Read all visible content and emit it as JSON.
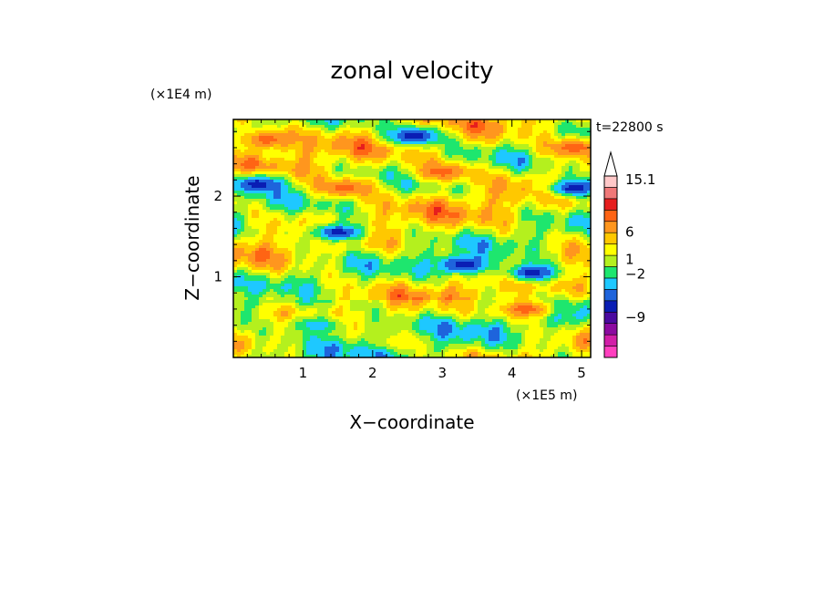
{
  "chart_data": {
    "type": "heatmap",
    "title": "zonal velocity",
    "xlabel": "X−coordinate",
    "ylabel": "Z−coordinate",
    "x_unit": "(×1E5 m)",
    "y_unit": "(×1E4 m)",
    "time_label": "t=22800 s",
    "xlim": [
      0,
      5.13
    ],
    "ylim": [
      0,
      2.95
    ],
    "x_ticks": [
      "1",
      "2",
      "3",
      "4",
      "5"
    ],
    "x_tick_values": [
      1,
      2,
      3,
      4,
      5
    ],
    "y_ticks": [
      "1",
      "2"
    ],
    "y_tick_values": [
      1,
      2
    ],
    "colorbar": {
      "labels": [
        "15.1",
        "6",
        "1",
        "−2",
        "−9"
      ],
      "label_values": [
        15.1,
        6,
        1,
        -2,
        -9
      ],
      "bands": [
        {
          "color": "#ff3fbf"
        },
        {
          "color": "#d21ea8"
        },
        {
          "color": "#8c0aa0"
        },
        {
          "color": "#4b0aa0"
        },
        {
          "color": "#0a1eb4"
        },
        {
          "color": "#1e64dc"
        },
        {
          "color": "#1ec8ff"
        },
        {
          "color": "#1ee66e"
        },
        {
          "color": "#b4f01e"
        },
        {
          "color": "#ffff00"
        },
        {
          "color": "#ffc800"
        },
        {
          "color": "#ff961e"
        },
        {
          "color": "#ff6414"
        },
        {
          "color": "#e61e1e"
        },
        {
          "color": "#f07878"
        },
        {
          "color": "#ffc8c8"
        }
      ]
    },
    "field_features": [
      {
        "x": 0.35,
        "z": 2.15,
        "level": 4
      },
      {
        "x": 2.6,
        "z": 2.75,
        "level": 4
      },
      {
        "x": 4.9,
        "z": 2.1,
        "level": 4
      },
      {
        "x": 1.5,
        "z": 1.55,
        "level": 4
      },
      {
        "x": 3.3,
        "z": 1.15,
        "level": 4
      },
      {
        "x": 4.3,
        "z": 1.05,
        "level": 4
      },
      {
        "x": 0.5,
        "z": 2.7,
        "level": 12
      },
      {
        "x": 1.6,
        "z": 2.1,
        "level": 12
      },
      {
        "x": 3.0,
        "z": 2.3,
        "level": 12
      },
      {
        "x": 4.9,
        "z": 2.6,
        "level": 12
      },
      {
        "x": 4.2,
        "z": 0.6,
        "level": 12
      },
      {
        "x": 2.4,
        "z": 0.2,
        "level": 9
      },
      {
        "x": 1.2,
        "z": 0.4,
        "level": 6
      }
    ]
  }
}
